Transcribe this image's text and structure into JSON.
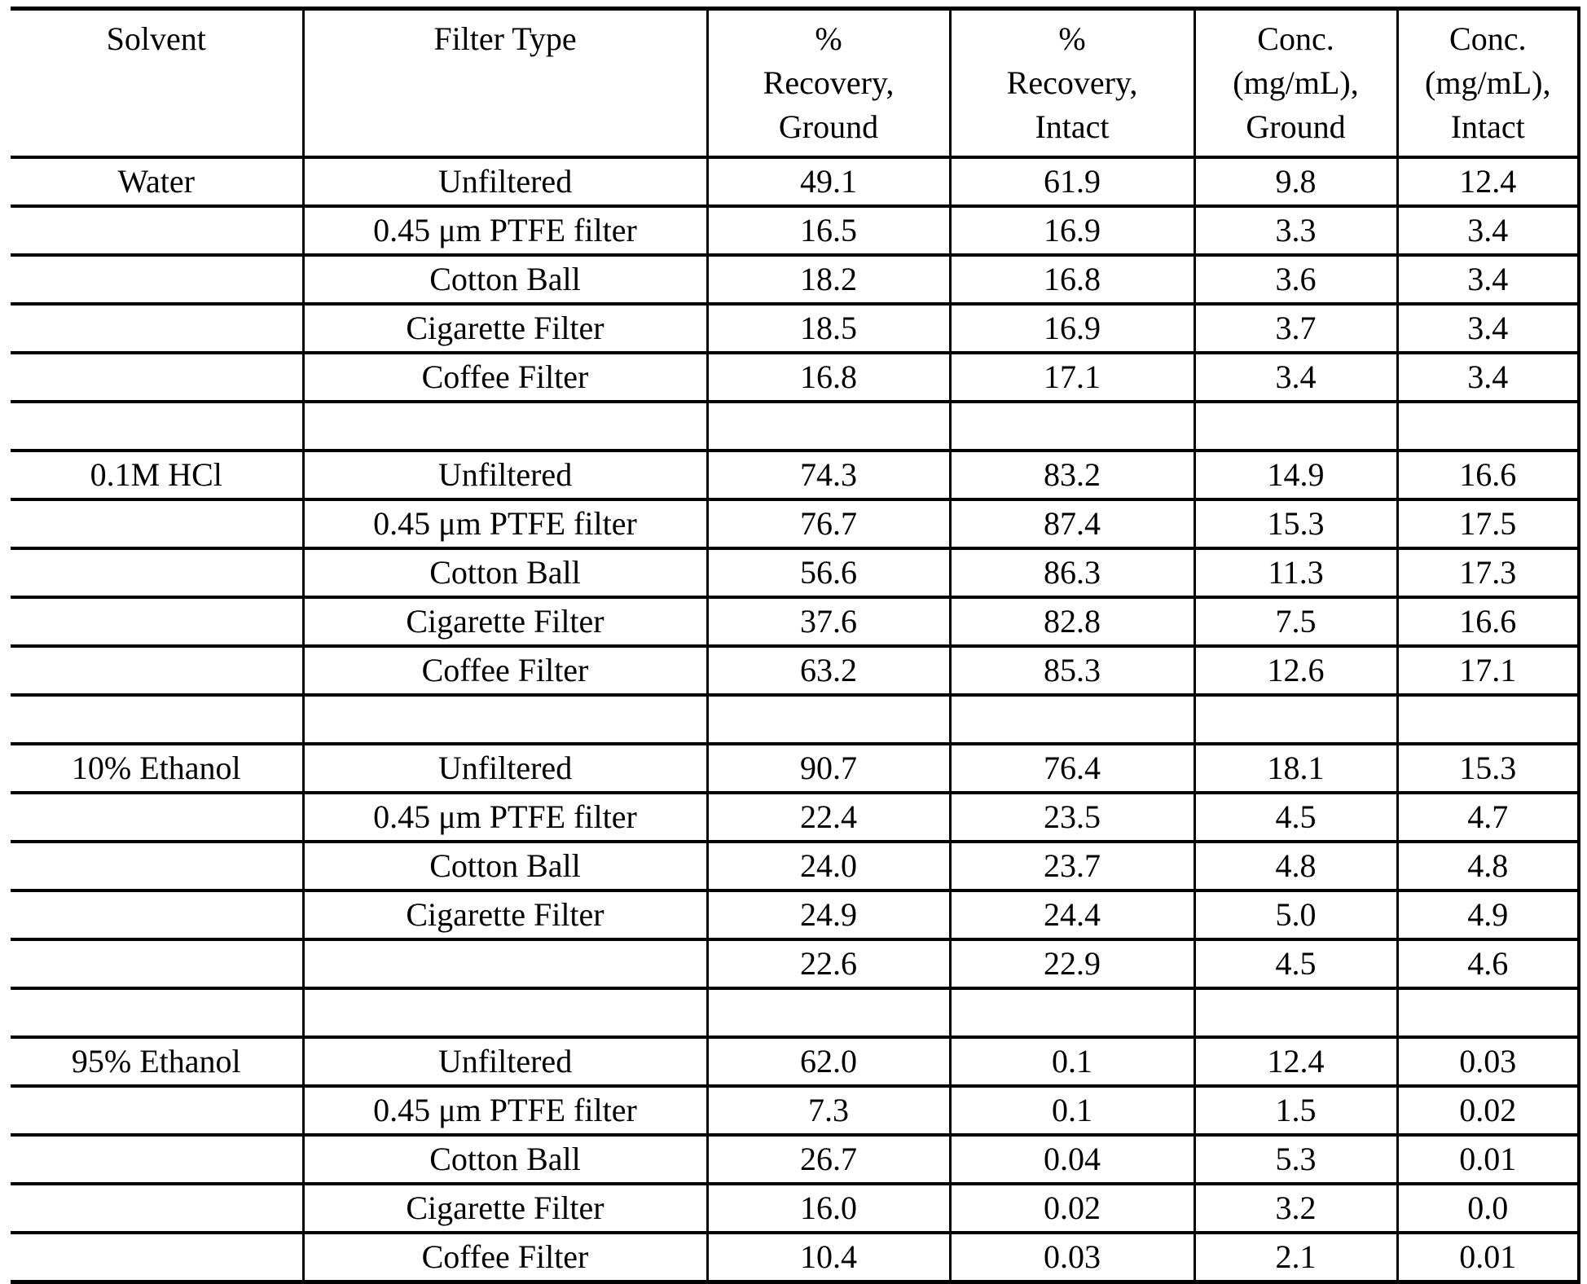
{
  "document": {
    "background_color": "#ffffff",
    "text_color": "#000000",
    "border_color": "#000000"
  },
  "table": {
    "headers": [
      [
        "Solvent"
      ],
      [
        "Filter Type"
      ],
      [
        "%",
        "Recovery,",
        "Ground"
      ],
      [
        "%",
        "Recovery,",
        "Intact"
      ],
      [
        "Conc.",
        "(mg/mL),",
        "Ground"
      ],
      [
        "Conc.",
        "(mg/mL),",
        "Intact"
      ]
    ],
    "rows": [
      [
        "Water",
        "Unfiltered",
        "49.1",
        "61.9",
        "9.8",
        "12.4"
      ],
      [
        "",
        "0.45 μm PTFE filter",
        "16.5",
        "16.9",
        "3.3",
        "3.4"
      ],
      [
        "",
        "Cotton Ball",
        "18.2",
        "16.8",
        "3.6",
        "3.4"
      ],
      [
        "",
        "Cigarette Filter",
        "18.5",
        "16.9",
        "3.7",
        "3.4"
      ],
      [
        "",
        "Coffee Filter",
        "16.8",
        "17.1",
        "3.4",
        "3.4"
      ],
      [
        "",
        "",
        "",
        "",
        "",
        ""
      ],
      [
        "0.1M HCl",
        "Unfiltered",
        "74.3",
        "83.2",
        "14.9",
        "16.6"
      ],
      [
        "",
        "0.45 μm PTFE filter",
        "76.7",
        "87.4",
        "15.3",
        "17.5"
      ],
      [
        "",
        "Cotton Ball",
        "56.6",
        "86.3",
        "11.3",
        "17.3"
      ],
      [
        "",
        "Cigarette Filter",
        "37.6",
        "82.8",
        "7.5",
        "16.6"
      ],
      [
        "",
        "Coffee Filter",
        "63.2",
        "85.3",
        "12.6",
        "17.1"
      ],
      [
        "",
        "",
        "",
        "",
        "",
        ""
      ],
      [
        "10% Ethanol",
        "Unfiltered",
        "90.7",
        "76.4",
        "18.1",
        "15.3"
      ],
      [
        "",
        "0.45 μm PTFE filter",
        "22.4",
        "23.5",
        "4.5",
        "4.7"
      ],
      [
        "",
        "Cotton Ball",
        "24.0",
        "23.7",
        "4.8",
        "4.8"
      ],
      [
        "",
        "Cigarette Filter",
        "24.9",
        "24.4",
        "5.0",
        "4.9"
      ],
      [
        "",
        "",
        "22.6",
        "22.9",
        "4.5",
        "4.6"
      ],
      [
        "",
        "",
        "",
        "",
        "",
        ""
      ],
      [
        "95% Ethanol",
        "Unfiltered",
        "62.0",
        "0.1",
        "12.4",
        "0.03"
      ],
      [
        "",
        "0.45 μm PTFE filter",
        "7.3",
        "0.1",
        "1.5",
        "0.02"
      ],
      [
        "",
        "Cotton Ball",
        "26.7",
        "0.04",
        "5.3",
        "0.01"
      ],
      [
        "",
        "Cigarette Filter",
        "16.0",
        "0.02",
        "3.2",
        "0.0"
      ],
      [
        "",
        "Coffee Filter",
        "10.4",
        "0.03",
        "2.1",
        "0.01"
      ]
    ],
    "spacer_row_indexes": [
      5,
      11,
      17
    ],
    "solvent_groups": [
      "Water",
      "0.1M HCl",
      "10% Ethanol",
      "95% Ethanol"
    ]
  }
}
